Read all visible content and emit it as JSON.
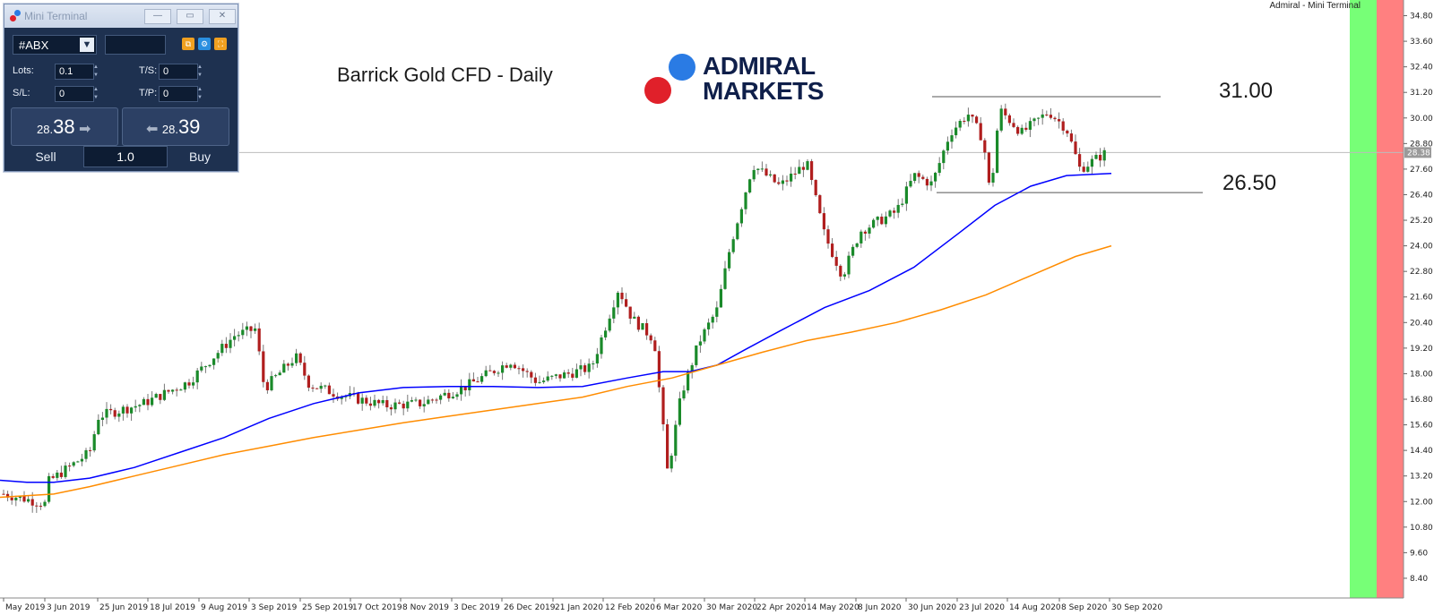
{
  "window": {
    "top_right_label": "Admiral - Mini Terminal"
  },
  "mini_terminal": {
    "title": "Mini Terminal",
    "symbol": "#ABX",
    "lots_label": "Lots:",
    "lots_value": "0.1",
    "ts_label": "T/S:",
    "ts_value": "0",
    "sl_label": "S/L:",
    "sl_value": "0",
    "tp_label": "T/P:",
    "tp_value": "0",
    "sell_small": "28.",
    "sell_big": "38",
    "buy_small": "28.",
    "buy_big": "39",
    "sell_label": "Sell",
    "buy_label": "Buy",
    "volume": "1.0"
  },
  "brand": {
    "line1": "ADMIRAL",
    "line2": "MARKETS",
    "blue": "#2a7be4",
    "red": "#e0202a",
    "navy": "#0f1f4a"
  },
  "chart_data": {
    "type": "candlestick",
    "title": "Barrick Gold CFD - Daily",
    "yticks": [
      "34.80",
      "33.60",
      "32.40",
      "31.20",
      "30.00",
      "28.80",
      "27.60",
      "26.40",
      "25.20",
      "24.00",
      "22.80",
      "21.60",
      "20.40",
      "19.20",
      "18.00",
      "16.80",
      "15.60",
      "14.40",
      "13.20",
      "12.00",
      "10.80",
      "9.60",
      "8.40"
    ],
    "xticks": [
      "May 2019",
      "3 Jun 2019",
      "25 Jun 2019",
      "18 Jul 2019",
      "9 Aug 2019",
      "3 Sep 2019",
      "25 Sep 2019",
      "17 Oct 2019",
      "8 Nov 2019",
      "3 Dec 2019",
      "26 Dec 2019",
      "21 Jan 2020",
      "12 Feb 2020",
      "6 Mar 2020",
      "30 Mar 2020",
      "22 Apr 2020",
      "14 May 2020",
      "8 Jun 2020",
      "30 Jun 2020",
      "23 Jul 2020",
      "14 Aug 2020",
      "8 Sep 2020",
      "30 Sep 2020"
    ],
    "ylim": [
      7.6,
      35.2
    ],
    "current_price": "28.38",
    "levels": [
      {
        "label": "31.00",
        "value": 31.0
      },
      {
        "label": "26.50",
        "value": 26.5
      }
    ],
    "price_path": [
      {
        "x": 0,
        "y": 12.4
      },
      {
        "x": 50,
        "y": 11.9
      },
      {
        "x": 53,
        "y": 12.9
      },
      {
        "x": 100,
        "y": 14.3
      },
      {
        "x": 110,
        "y": 16.0
      },
      {
        "x": 160,
        "y": 16.6
      },
      {
        "x": 210,
        "y": 17.6
      },
      {
        "x": 262,
        "y": 19.8
      },
      {
        "x": 285,
        "y": 20.1
      },
      {
        "x": 295,
        "y": 17.3
      },
      {
        "x": 330,
        "y": 18.8
      },
      {
        "x": 345,
        "y": 17.5
      },
      {
        "x": 380,
        "y": 17.0
      },
      {
        "x": 430,
        "y": 16.5
      },
      {
        "x": 470,
        "y": 16.6
      },
      {
        "x": 520,
        "y": 17.4
      },
      {
        "x": 570,
        "y": 18.6
      },
      {
        "x": 600,
        "y": 17.6
      },
      {
        "x": 660,
        "y": 18.3
      },
      {
        "x": 690,
        "y": 22.0
      },
      {
        "x": 705,
        "y": 20.6
      },
      {
        "x": 730,
        "y": 19.6
      },
      {
        "x": 745,
        "y": 13.3
      },
      {
        "x": 760,
        "y": 17.0
      },
      {
        "x": 780,
        "y": 19.5
      },
      {
        "x": 800,
        "y": 21.0
      },
      {
        "x": 815,
        "y": 24.0
      },
      {
        "x": 840,
        "y": 27.8
      },
      {
        "x": 870,
        "y": 26.8
      },
      {
        "x": 900,
        "y": 27.9
      },
      {
        "x": 920,
        "y": 24.5
      },
      {
        "x": 940,
        "y": 22.6
      },
      {
        "x": 960,
        "y": 24.7
      },
      {
        "x": 1000,
        "y": 25.6
      },
      {
        "x": 1020,
        "y": 27.3
      },
      {
        "x": 1040,
        "y": 26.9
      },
      {
        "x": 1060,
        "y": 29.3
      },
      {
        "x": 1080,
        "y": 30.2
      },
      {
        "x": 1097,
        "y": 29.0
      },
      {
        "x": 1105,
        "y": 26.3
      },
      {
        "x": 1115,
        "y": 30.4
      },
      {
        "x": 1140,
        "y": 29.3
      },
      {
        "x": 1170,
        "y": 30.3
      },
      {
        "x": 1190,
        "y": 29.5
      },
      {
        "x": 1205,
        "y": 27.6
      },
      {
        "x": 1220,
        "y": 28.0
      },
      {
        "x": 1235,
        "y": 28.4
      }
    ],
    "series": [
      {
        "name": "",
        "color": "#0000ff",
        "points": [
          [
            0,
            13.0
          ],
          [
            30,
            12.9
          ],
          [
            60,
            12.9
          ],
          [
            100,
            13.1
          ],
          [
            150,
            13.6
          ],
          [
            200,
            14.3
          ],
          [
            250,
            15.0
          ],
          [
            300,
            15.9
          ],
          [
            350,
            16.6
          ],
          [
            400,
            17.1
          ],
          [
            450,
            17.35
          ],
          [
            500,
            17.4
          ],
          [
            550,
            17.4
          ],
          [
            600,
            17.35
          ],
          [
            650,
            17.4
          ],
          [
            700,
            17.8
          ],
          [
            740,
            18.1
          ],
          [
            770,
            18.1
          ],
          [
            800,
            18.4
          ],
          [
            830,
            19.1
          ],
          [
            870,
            20.0
          ],
          [
            920,
            21.1
          ],
          [
            970,
            21.9
          ],
          [
            1020,
            23.0
          ],
          [
            1070,
            24.6
          ],
          [
            1110,
            25.9
          ],
          [
            1150,
            26.8
          ],
          [
            1190,
            27.3
          ],
          [
            1240,
            27.4
          ]
        ]
      },
      {
        "name": "",
        "color": "#ff8c00",
        "points": [
          [
            0,
            12.2
          ],
          [
            60,
            12.35
          ],
          [
            100,
            12.7
          ],
          [
            150,
            13.2
          ],
          [
            200,
            13.7
          ],
          [
            250,
            14.2
          ],
          [
            300,
            14.6
          ],
          [
            350,
            15.0
          ],
          [
            400,
            15.35
          ],
          [
            450,
            15.7
          ],
          [
            500,
            16.0
          ],
          [
            550,
            16.3
          ],
          [
            600,
            16.6
          ],
          [
            650,
            16.9
          ],
          [
            700,
            17.4
          ],
          [
            750,
            17.8
          ],
          [
            800,
            18.4
          ],
          [
            850,
            19.0
          ],
          [
            900,
            19.55
          ],
          [
            950,
            19.95
          ],
          [
            1000,
            20.4
          ],
          [
            1050,
            21.0
          ],
          [
            1100,
            21.7
          ],
          [
            1150,
            22.6
          ],
          [
            1200,
            23.5
          ],
          [
            1240,
            24.0
          ]
        ]
      }
    ]
  }
}
